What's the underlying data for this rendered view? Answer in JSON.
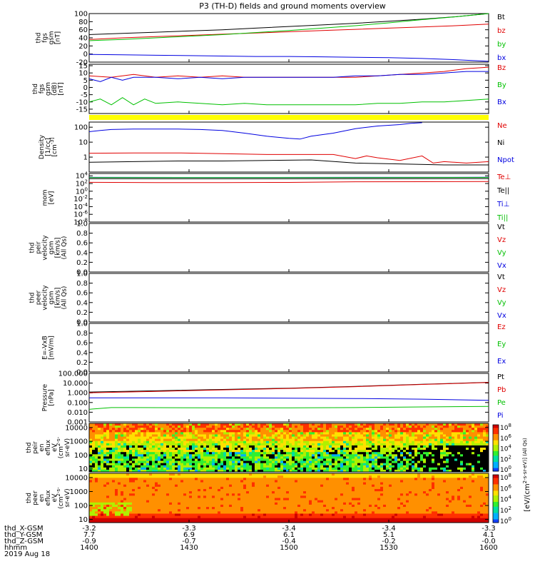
{
  "chart_data": {
    "type": "line",
    "title": "P3 (TH-D) fields and ground moments overview",
    "date_label": "2019 Aug 18",
    "x_axis": {
      "row_labels": [
        "thd_X-GSM",
        "thd_Y-GSM",
        "thd_Z-GSM",
        "hhmm"
      ],
      "ticks": [
        {
          "values": [
            "-3.2",
            "7.7",
            "-0.9",
            "1400"
          ]
        },
        {
          "values": [
            "-3.3",
            "6.9",
            "-0.7",
            "1430"
          ]
        },
        {
          "values": [
            "-3.4",
            "6.1",
            "-0.4",
            "1500"
          ]
        },
        {
          "values": [
            "-3.4",
            "5.1",
            "-0.2",
            "1530"
          ]
        },
        {
          "values": [
            "-3.3",
            "4.1",
            "-0.0",
            "1600"
          ]
        }
      ]
    },
    "panels": [
      {
        "ylabel": [
          "thd",
          "fgs",
          "gsm",
          "[nT]"
        ],
        "yscale": "linear",
        "ylim": [
          -20,
          100
        ],
        "yticks": [
          "100",
          "80",
          "60",
          "40",
          "20",
          "0",
          "-20"
        ],
        "legend": [
          {
            "label": "Bt",
            "color": "#000000"
          },
          {
            "label": "bz",
            "color": "#e00000"
          },
          {
            "label": "by",
            "color": "#00c000"
          },
          {
            "label": "bx",
            "color": "#0000e0"
          }
        ],
        "series": [
          {
            "name": "Bt",
            "color": "#000000",
            "x": [
              0,
              15,
              30,
              45,
              60,
              75,
              90,
              105,
              120,
              135,
              150,
              165,
              180
            ],
            "y": [
              48,
              51,
              54,
              57,
              60,
              64,
              68,
              72,
              76,
              81,
              86,
              92,
              100
            ]
          },
          {
            "name": "bz",
            "color": "#e00000",
            "x": [
              0,
              15,
              30,
              45,
              60,
              75,
              90,
              105,
              120,
              135,
              150,
              165,
              180
            ],
            "y": [
              36,
              40,
              43,
              46,
              49,
              52,
              55,
              58,
              61,
              64,
              67,
              70,
              74
            ]
          },
          {
            "name": "by",
            "color": "#00c000",
            "x": [
              0,
              15,
              30,
              45,
              60,
              75,
              90,
              105,
              120,
              135,
              150,
              165,
              180
            ],
            "y": [
              33,
              36,
              40,
              44,
              48,
              53,
              58,
              64,
              70,
              77,
              85,
              92,
              100
            ]
          },
          {
            "name": "bx",
            "color": "#0000e0",
            "x": [
              0,
              15,
              30,
              45,
              60,
              75,
              90,
              105,
              120,
              135,
              150,
              165,
              180
            ],
            "y": [
              -1,
              -2,
              -3,
              -4,
              -5,
              -6,
              -6,
              -7,
              -8,
              -9,
              -11,
              -14,
              -18
            ]
          }
        ]
      },
      {
        "ylabel": [
          "thd",
          "fgs",
          "gsm",
          "(dB)",
          "[nT]"
        ],
        "yscale": "linear",
        "ylim": [
          -18,
          16
        ],
        "yticks": [
          "15",
          "10",
          "5",
          "0",
          "-5",
          "-10",
          "-15"
        ],
        "legend": [
          {
            "label": "Bz",
            "color": "#e00000"
          },
          {
            "label": "By",
            "color": "#00c000"
          },
          {
            "label": "Bx",
            "color": "#0000e0"
          }
        ],
        "series": [
          {
            "name": "Bz",
            "color": "#e00000",
            "x": [
              0,
              10,
              20,
              30,
              40,
              50,
              60,
              70,
              80,
              90,
              100,
              110,
              120,
              130,
              140,
              150,
              160,
              170,
              180
            ],
            "y": [
              8,
              7,
              9,
              7,
              8,
              7,
              8,
              7,
              7,
              7,
              7,
              7,
              7,
              8,
              9,
              10,
              11,
              13,
              14
            ]
          },
          {
            "name": "By",
            "color": "#00c000",
            "x": [
              0,
              5,
              10,
              15,
              20,
              25,
              30,
              40,
              50,
              60,
              70,
              80,
              90,
              100,
              110,
              120,
              130,
              140,
              150,
              160,
              170,
              180
            ],
            "y": [
              -10,
              -8,
              -12,
              -7,
              -12,
              -8,
              -11,
              -10,
              -11,
              -12,
              -11,
              -12,
              -12,
              -12,
              -12,
              -12,
              -11,
              -11,
              -10,
              -10,
              -9,
              -8
            ]
          },
          {
            "name": "Bx",
            "color": "#0000e0",
            "x": [
              0,
              5,
              10,
              15,
              20,
              30,
              40,
              50,
              60,
              70,
              80,
              90,
              100,
              110,
              120,
              130,
              140,
              150,
              160,
              170,
              180
            ],
            "y": [
              6,
              4,
              7,
              5,
              7,
              7,
              6,
              7,
              6,
              7,
              7,
              7,
              7,
              7,
              8,
              8,
              9,
              9,
              10,
              11,
              11
            ]
          }
        ]
      },
      {
        "ylabel": [
          "Density",
          "[1/cc]",
          "[cm^-3]"
        ],
        "yscale": "log",
        "ylim": [
          0.1,
          220
        ],
        "yticks": [
          "100",
          "10",
          "1"
        ],
        "legend": [
          {
            "label": "Ne",
            "color": "#e00000"
          },
          {
            "label": "Ni",
            "color": "#000000"
          },
          {
            "label": "Npot",
            "color": "#0000e0"
          }
        ],
        "series": [
          {
            "name": "Ne",
            "color": "#e00000",
            "x": [
              0,
              20,
              40,
              60,
              80,
              100,
              110,
              120,
              125,
              130,
              140,
              150,
              155,
              160,
              170,
              180
            ],
            "y": [
              1.8,
              1.9,
              1.9,
              1.7,
              1.5,
              1.5,
              1.5,
              0.8,
              1.2,
              0.9,
              0.6,
              1.2,
              0.4,
              0.5,
              0.4,
              0.5
            ]
          },
          {
            "name": "Ni",
            "color": "#000000",
            "x": [
              0,
              20,
              40,
              60,
              80,
              100,
              120,
              140,
              160,
              180
            ],
            "y": [
              0.45,
              0.5,
              0.55,
              0.55,
              0.6,
              0.65,
              0.4,
              0.35,
              0.3,
              0.3
            ]
          },
          {
            "name": "Npot",
            "color": "#0000e0",
            "x": [
              0,
              5,
              10,
              20,
              30,
              40,
              50,
              60,
              70,
              80,
              90,
              95,
              100,
              110,
              120,
              130,
              140,
              145,
              150
            ],
            "y": [
              50,
              60,
              70,
              75,
              75,
              75,
              70,
              60,
              40,
              25,
              18,
              16,
              25,
              40,
              80,
              120,
              150,
              180,
              200
            ]
          }
        ]
      },
      {
        "ylabel": [
          "mom",
          "[eV]"
        ],
        "yscale": "log",
        "ylim": [
          1e-08,
          40000
        ],
        "yticks": [
          "10^4",
          "10^2",
          "10^0",
          "10^-2",
          "10^-4",
          "10^-6",
          "10^-8"
        ],
        "legend": [
          {
            "label": "Te⊥",
            "color": "#e00000"
          },
          {
            "label": "Te||",
            "color": "#000000"
          },
          {
            "label": "Ti⊥",
            "color": "#0000e0"
          },
          {
            "label": "Ti||",
            "color": "#00c000"
          }
        ],
        "series": [
          {
            "name": "Te⊥",
            "color": "#e00000",
            "x": [
              0,
              30,
              60,
              90,
              120,
              150,
              180
            ],
            "y": [
              200,
              170,
              180,
              190,
              280,
              300,
              320
            ]
          },
          {
            "name": "Te||",
            "color": "#000000",
            "x": [
              0,
              60,
              120,
              180
            ],
            "y": [
              1800,
              1700,
              1800,
              1900
            ]
          },
          {
            "name": "Ti⊥",
            "color": "#0000e0",
            "x": [
              0,
              60,
              120,
              180
            ],
            "y": [
              4000,
              3900,
              4000,
              4200
            ]
          },
          {
            "name": "Ti||",
            "color": "#00c000",
            "x": [
              0,
              60,
              120,
              180
            ],
            "y": [
              3500,
              3400,
              3500,
              3700
            ]
          }
        ]
      },
      {
        "ylabel": [
          "thd",
          "peir",
          "velocity",
          "gsm",
          "[km/s]",
          "(All Qs)"
        ],
        "yscale": "linear",
        "ylim": [
          0,
          1
        ],
        "yticks": [
          "1.0",
          "0.8",
          "0.6",
          "0.4",
          "0.2",
          "0.0"
        ],
        "legend": [
          {
            "label": "Vt",
            "color": "#000000"
          },
          {
            "label": "Vz",
            "color": "#e00000"
          },
          {
            "label": "Vy",
            "color": "#00c000"
          },
          {
            "label": "Vx",
            "color": "#0000e0"
          }
        ],
        "series": []
      },
      {
        "ylabel": [
          "thd",
          "peer",
          "velocity",
          "gsm",
          "[km/s]",
          "(All Qs)"
        ],
        "yscale": "linear",
        "ylim": [
          0,
          1
        ],
        "yticks": [
          "1.0",
          "0.8",
          "0.6",
          "0.4",
          "0.2",
          "0.0"
        ],
        "legend": [
          {
            "label": "Vt",
            "color": "#000000"
          },
          {
            "label": "Vz",
            "color": "#e00000"
          },
          {
            "label": "Vy",
            "color": "#00c000"
          },
          {
            "label": "Vx",
            "color": "#0000e0"
          }
        ],
        "series": []
      },
      {
        "ylabel": [
          "E=-VxB",
          "[mV/m]"
        ],
        "yscale": "linear",
        "ylim": [
          0,
          1
        ],
        "yticks": [
          "1.0",
          "0.8",
          "0.6",
          "0.4",
          "0.2",
          "0.0"
        ],
        "legend": [
          {
            "label": "Ez",
            "color": "#e00000"
          },
          {
            "label": "Ey",
            "color": "#00c000"
          },
          {
            "label": "Ex",
            "color": "#0000e0"
          }
        ],
        "series": []
      },
      {
        "ylabel": [
          "Pressure",
          "[nPa]"
        ],
        "yscale": "log",
        "ylim": [
          0.001,
          100
        ],
        "yticks": [
          "100.000",
          "10.000",
          "1.000",
          "0.100",
          "0.010",
          "0.001"
        ],
        "legend": [
          {
            "label": "Pt",
            "color": "#000000"
          },
          {
            "label": "Pb",
            "color": "#e00000"
          },
          {
            "label": "Pe",
            "color": "#00c000"
          },
          {
            "label": "Pi",
            "color": "#0000e0"
          }
        ],
        "series": [
          {
            "name": "Pt",
            "color": "#000000",
            "x": [
              0,
              30,
              60,
              90,
              120,
              150,
              180
            ],
            "y": [
              1.2,
              1.6,
              2.2,
              3.0,
              4.6,
              7.5,
              12
            ]
          },
          {
            "name": "Pb",
            "color": "#e00000",
            "x": [
              0,
              30,
              60,
              90,
              120,
              150,
              180
            ],
            "y": [
              1.0,
              1.4,
              2.0,
              2.8,
              4.3,
              7.2,
              11.5
            ]
          },
          {
            "name": "Pe",
            "color": "#00c000",
            "x": [
              0,
              10,
              20,
              60,
              90,
              120,
              150,
              180
            ],
            "y": [
              0.02,
              0.03,
              0.03,
              0.028,
              0.028,
              0.03,
              0.035,
              0.04
            ]
          },
          {
            "name": "Pi",
            "color": "#0000e0",
            "x": [
              0,
              30,
              60,
              90,
              120,
              150,
              180
            ],
            "y": [
              0.3,
              0.3,
              0.3,
              0.28,
              0.26,
              0.22,
              0.17
            ]
          }
        ]
      },
      {
        "type": "heatmap",
        "ylabel": [
          "thd",
          "peir",
          "en",
          "eflux",
          "eV",
          "(cm^2-s-",
          "sr-eV)"
        ],
        "yscale": "log",
        "ylim": [
          6,
          20000
        ],
        "yticks": [
          "10000",
          "1000",
          "100",
          "10"
        ],
        "instrument": "ion"
      },
      {
        "type": "heatmap",
        "ylabel": [
          "thd",
          "peer",
          "en",
          "eflux",
          "eV",
          "(cm^2-s-",
          "sr-eV)"
        ],
        "yscale": "log",
        "ylim": [
          6,
          20000
        ],
        "yticks": [
          "10000",
          "1000",
          "100",
          "10"
        ],
        "instrument": "electron"
      }
    ],
    "colorbar": {
      "label": "[eV/(cm^2-s-sr-eV)] (All Qs)",
      "ticks_top": [
        "10^8",
        "10^6",
        "10^4",
        "10^2",
        "10^0"
      ],
      "ticks_bottom": [
        "10^8",
        "10^6",
        "10^4",
        "10^2",
        "10^0"
      ]
    },
    "status_bar": {
      "color": "#ffff00"
    }
  }
}
